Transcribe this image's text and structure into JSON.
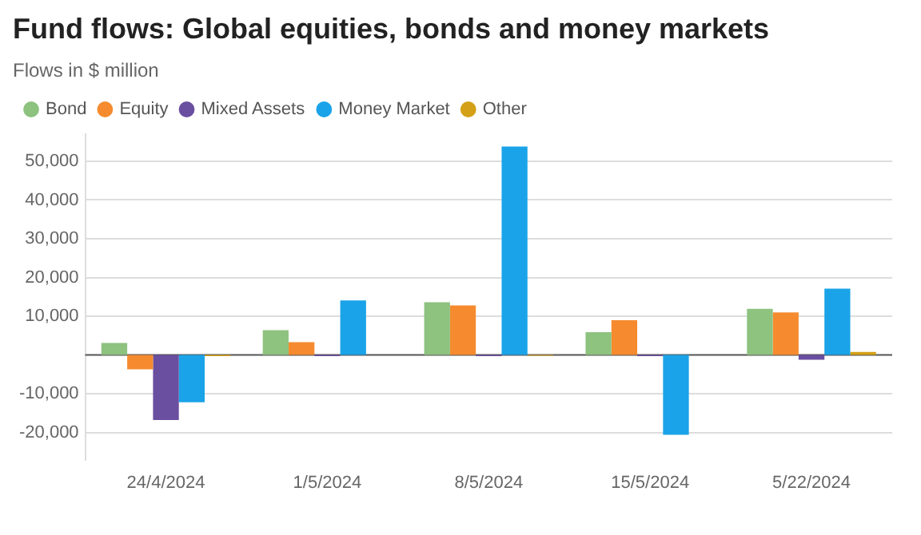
{
  "chart_data": {
    "type": "bar",
    "title": "Fund flows: Global equities, bonds and money markets",
    "subtitle": "Flows in $ million",
    "categories": [
      "24/4/2024",
      "1/5/2024",
      "8/5/2024",
      "15/5/2024",
      "5/22/2024"
    ],
    "series": [
      {
        "name": "Bond",
        "color": "#8dc27f",
        "values": [
          3100,
          6400,
          13600,
          5900,
          11900
        ]
      },
      {
        "name": "Equity",
        "color": "#f58b2e",
        "values": [
          -3700,
          3300,
          12800,
          9000,
          11000
        ]
      },
      {
        "name": "Mixed Assets",
        "color": "#6a4ea0",
        "values": [
          -16800,
          -300,
          -300,
          -300,
          -1200
        ]
      },
      {
        "name": "Money Market",
        "color": "#1aa3e8",
        "values": [
          -12200,
          14100,
          53800,
          -20600,
          17100
        ]
      },
      {
        "name": "Other",
        "color": "#d4a017",
        "values": [
          -300,
          0,
          -200,
          0,
          800
        ]
      }
    ],
    "ylim": [
      -27000,
      57000
    ],
    "yticks": [
      {
        "value": -20000,
        "label": "-20,000"
      },
      {
        "value": -10000,
        "label": "-10,000"
      },
      {
        "value": 10000,
        "label": "10,000"
      },
      {
        "value": 20000,
        "label": "20,000"
      },
      {
        "value": 30000,
        "label": "30,000"
      },
      {
        "value": 40000,
        "label": "40,000"
      },
      {
        "value": 50000,
        "label": "50,000"
      }
    ],
    "grid": "y",
    "legend": "top left"
  }
}
